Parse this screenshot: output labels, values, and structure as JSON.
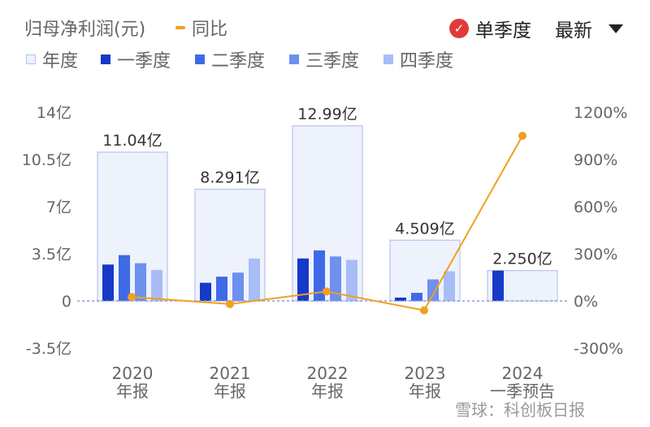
{
  "header": {
    "metric_title": "归母净利润(元)",
    "yoy_label": "同比",
    "quarter_toggle_label": "单季度",
    "latest_label": "最新"
  },
  "legend": [
    {
      "label": "年度",
      "color": "#eef2fd",
      "border": "#b7c3ef"
    },
    {
      "label": "一季度",
      "color": "#1739c7"
    },
    {
      "label": "二季度",
      "color": "#3f6ae6"
    },
    {
      "label": "三季度",
      "color": "#6e90ee"
    },
    {
      "label": "四季度",
      "color": "#a8bdf6"
    }
  ],
  "colors": {
    "annual_fill": "#eef2fd",
    "annual_border": "#b7c3ef",
    "yoy_line": "#f0a020",
    "zero_line": "#8aa0d8",
    "check": "#e23a3a"
  },
  "watermark": "雪球：科创板日报",
  "chart_data": {
    "type": "bar",
    "categories": [
      [
        "2020",
        "年报"
      ],
      [
        "2021",
        "年报"
      ],
      [
        "2022",
        "年报"
      ],
      [
        "2023",
        "年报"
      ],
      [
        "2024",
        "一季预告"
      ]
    ],
    "left_axis": {
      "ticks": [
        14,
        10.5,
        7,
        3.5,
        0,
        -3.5
      ],
      "labels": [
        "14亿",
        "10.5亿",
        "7亿",
        "3.5亿",
        "0",
        "-3.5亿"
      ],
      "ylim": [
        -3.5,
        14
      ]
    },
    "right_axis": {
      "ticks": [
        1200,
        900,
        600,
        300,
        0,
        -300
      ],
      "labels": [
        "1200%",
        "900%",
        "600%",
        "300%",
        "0%",
        "-300%"
      ],
      "ylim": [
        -300,
        1200
      ]
    },
    "annual": {
      "values": [
        11.04,
        8.291,
        12.99,
        4.509,
        2.25
      ],
      "labels": [
        "11.04亿",
        "8.291亿",
        "12.99亿",
        "4.509亿",
        "2.250亿"
      ]
    },
    "series": [
      {
        "name": "一季度",
        "values": [
          2.7,
          1.35,
          3.15,
          0.25,
          2.25
        ]
      },
      {
        "name": "二季度",
        "values": [
          3.4,
          1.8,
          3.75,
          0.6,
          null
        ]
      },
      {
        "name": "三季度",
        "values": [
          2.8,
          2.1,
          3.3,
          1.6,
          null
        ]
      },
      {
        "name": "四季度",
        "values": [
          2.3,
          3.15,
          3.05,
          2.2,
          null
        ]
      }
    ],
    "yoy": {
      "name": "同比",
      "values": [
        25,
        -20,
        60,
        -60,
        1050
      ]
    },
    "grid": false
  }
}
